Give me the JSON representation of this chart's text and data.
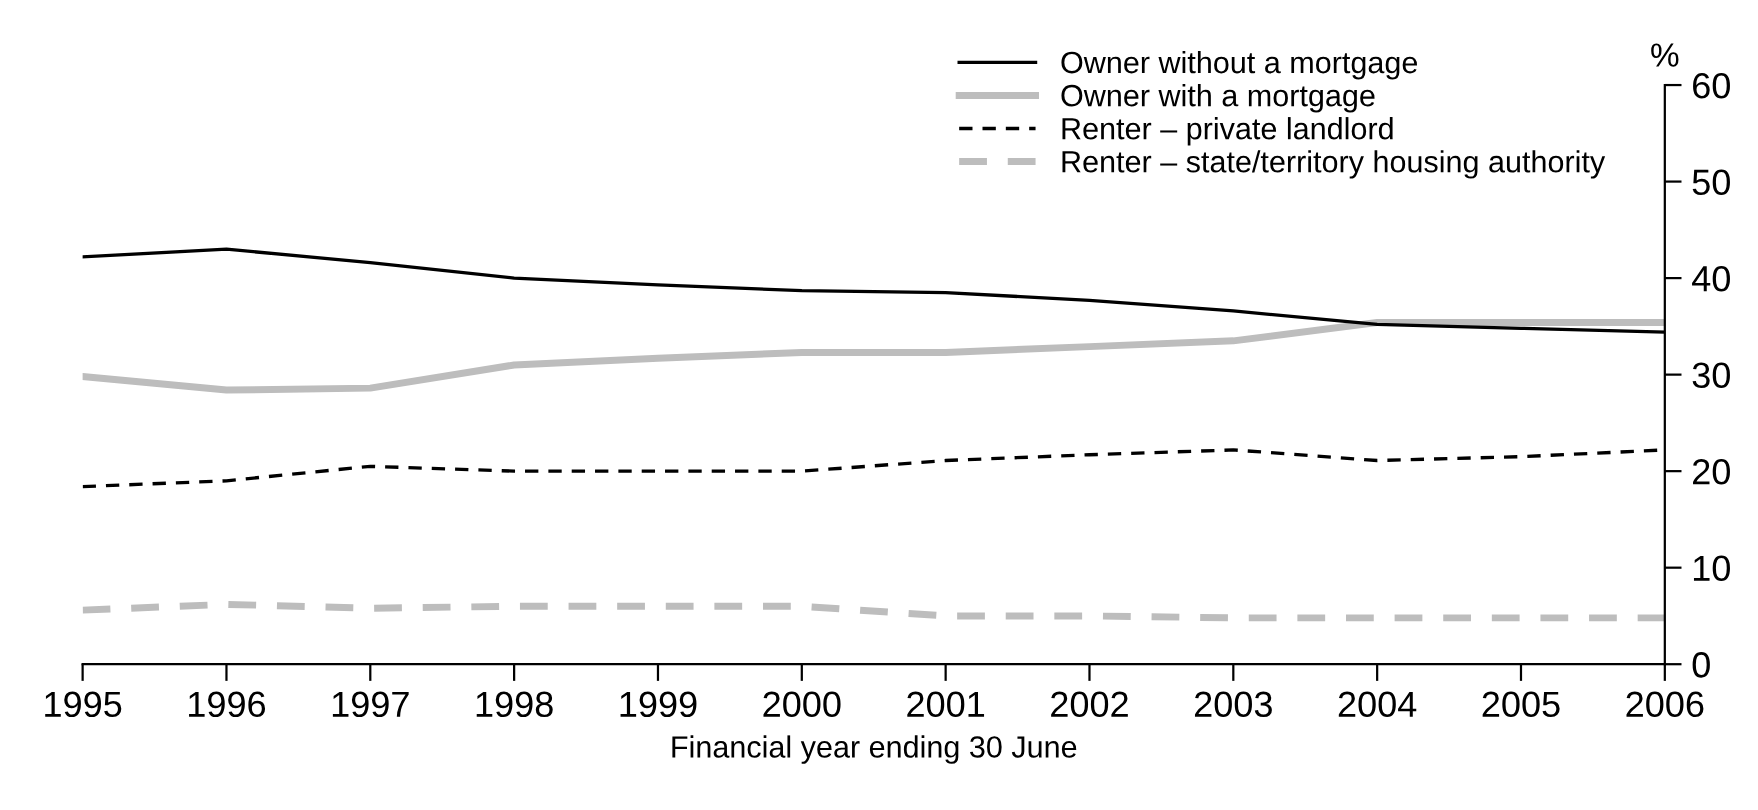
{
  "chart_data": {
    "type": "line",
    "xlabel": "Financial year ending 30 June",
    "ylabel": "%",
    "x": [
      1995,
      1996,
      1997,
      1998,
      1999,
      2000,
      2001,
      2002,
      2003,
      2004,
      2005,
      2006
    ],
    "xlim": [
      1995,
      2006
    ],
    "xticks": [
      1995,
      1996,
      1997,
      1998,
      1999,
      2000,
      2001,
      2002,
      2003,
      2004,
      2005,
      2006
    ],
    "ylim": [
      0,
      60
    ],
    "yticks": [
      0,
      10,
      20,
      30,
      40,
      50,
      60
    ],
    "grid": false,
    "legend": "top right",
    "marker": "none",
    "series": [
      {
        "name": "Owner without a mortgage",
        "color": "#000000",
        "line_style": "solid",
        "values": [
          42.2,
          43,
          41.6,
          40,
          39.3,
          38.7,
          38.5,
          37.7,
          36.6,
          35.2,
          34.8,
          34.4
        ]
      },
      {
        "name": "Owner with a mortgage",
        "color": "#bdbdbd",
        "line_style": "solid",
        "values": [
          29.8,
          28.4,
          28.6,
          31,
          31.7,
          32.3,
          32.3,
          32.9,
          33.5,
          35.4,
          35.4,
          35.4
        ]
      },
      {
        "name": "Renter – private landlord",
        "color": "#000000",
        "line_style": "dashed",
        "values": [
          18.4,
          19,
          20.5,
          20,
          20,
          20,
          21.1,
          21.7,
          22.2,
          21.1,
          21.5,
          22.2
        ]
      },
      {
        "name": "Renter – state/territory housing authority",
        "color": "#bdbdbd",
        "line_style": "dashed",
        "values": [
          5.6,
          6.2,
          5.8,
          6,
          6,
          6,
          5,
          5,
          4.8,
          4.8,
          4.8,
          4.8
        ]
      }
    ]
  }
}
